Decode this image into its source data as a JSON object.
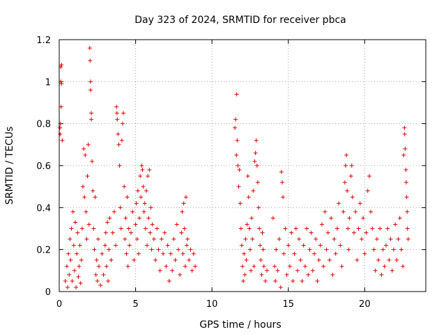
{
  "chart_data": {
    "type": "scatter",
    "title": "Day 323 of 2024, SRMTID for receiver pbca",
    "xlabel": "GPS time / hours",
    "ylabel": "SRMTID / TECUs",
    "xlim": [
      0,
      24
    ],
    "ylim": [
      0,
      1.2
    ],
    "x_ticks": [
      "0",
      "5",
      "10",
      "15",
      "20"
    ],
    "y_ticks": [
      "0",
      "0.2",
      "0.4",
      "0.6",
      "0.8",
      "1",
      "1.2"
    ],
    "grid": true,
    "marker": "plus",
    "color": "#e00000",
    "series": [
      {
        "name": "SRMTID",
        "points": [
          [
            0.05,
            0.78
          ],
          [
            0.06,
            0.75
          ],
          [
            0.08,
            0.8
          ],
          [
            0.1,
            1.07
          ],
          [
            0.1,
            1.0
          ],
          [
            0.12,
            0.88
          ],
          [
            0.15,
            0.99
          ],
          [
            0.15,
            1.08
          ],
          [
            0.2,
            0.72
          ],
          [
            0.4,
            0.05
          ],
          [
            0.5,
            0.12
          ],
          [
            0.55,
            0.02
          ],
          [
            0.6,
            0.18
          ],
          [
            0.65,
            0.08
          ],
          [
            0.7,
            0.25
          ],
          [
            0.75,
            0.15
          ],
          [
            0.8,
            0.3
          ],
          [
            0.85,
            0.05
          ],
          [
            0.9,
            0.38
          ],
          [
            0.95,
            0.22
          ],
          [
            1.0,
            0.1
          ],
          [
            1.05,
            0.33
          ],
          [
            1.1,
            0.02
          ],
          [
            1.15,
            0.18
          ],
          [
            1.2,
            0.28
          ],
          [
            1.25,
            0.07
          ],
          [
            1.3,
            0.12
          ],
          [
            1.35,
            0.22
          ],
          [
            1.4,
            0.04
          ],
          [
            1.45,
            0.15
          ],
          [
            1.5,
            0.3
          ],
          [
            1.55,
            0.5
          ],
          [
            1.6,
            0.68
          ],
          [
            1.65,
            0.45
          ],
          [
            1.7,
            0.65
          ],
          [
            1.75,
            0.38
          ],
          [
            1.8,
            0.25
          ],
          [
            1.85,
            0.55
          ],
          [
            1.9,
            0.7
          ],
          [
            1.95,
            0.32
          ],
          [
            2.0,
            1.16
          ],
          [
            2.02,
            1.1
          ],
          [
            2.05,
            1.0
          ],
          [
            2.05,
            0.96
          ],
          [
            2.1,
            0.85
          ],
          [
            2.1,
            0.82
          ],
          [
            2.15,
            0.62
          ],
          [
            2.2,
            0.48
          ],
          [
            2.25,
            0.3
          ],
          [
            2.3,
            0.2
          ],
          [
            2.35,
            0.45
          ],
          [
            2.4,
            0.08
          ],
          [
            2.45,
            0.15
          ],
          [
            2.5,
            0.05
          ],
          [
            2.55,
            0.25
          ],
          [
            2.6,
            0.12
          ],
          [
            2.7,
            0.03
          ],
          [
            2.8,
            0.18
          ],
          [
            2.9,
            0.08
          ],
          [
            3.0,
            0.22
          ],
          [
            3.05,
            0.28
          ],
          [
            3.1,
            0.12
          ],
          [
            3.15,
            0.33
          ],
          [
            3.2,
            0.05
          ],
          [
            3.25,
            0.2
          ],
          [
            3.3,
            0.35
          ],
          [
            3.4,
            0.15
          ],
          [
            3.5,
            0.28
          ],
          [
            3.6,
            0.38
          ],
          [
            3.7,
            0.22
          ],
          [
            3.75,
            0.88
          ],
          [
            3.78,
            0.85
          ],
          [
            3.8,
            0.82
          ],
          [
            3.85,
            0.75
          ],
          [
            3.9,
            0.7
          ],
          [
            3.95,
            0.6
          ],
          [
            4.0,
            0.4
          ],
          [
            4.05,
            0.3
          ],
          [
            4.1,
            0.72
          ],
          [
            4.15,
            0.8
          ],
          [
            4.2,
            0.85
          ],
          [
            4.25,
            0.5
          ],
          [
            4.3,
            0.25
          ],
          [
            4.35,
            0.35
          ],
          [
            4.4,
            0.18
          ],
          [
            4.45,
            0.45
          ],
          [
            4.5,
            0.12
          ],
          [
            4.55,
            0.3
          ],
          [
            4.6,
            0.22
          ],
          [
            4.7,
            0.28
          ],
          [
            4.8,
            0.38
          ],
          [
            4.9,
            0.15
          ],
          [
            5.0,
            0.32
          ],
          [
            5.05,
            0.42
          ],
          [
            5.1,
            0.25
          ],
          [
            5.15,
            0.48
          ],
          [
            5.2,
            0.18
          ],
          [
            5.25,
            0.35
          ],
          [
            5.3,
            0.55
          ],
          [
            5.35,
            0.45
          ],
          [
            5.4,
            0.6
          ],
          [
            5.45,
            0.58
          ],
          [
            5.5,
            0.5
          ],
          [
            5.55,
            0.38
          ],
          [
            5.6,
            0.42
          ],
          [
            5.65,
            0.3
          ],
          [
            5.7,
            0.48
          ],
          [
            5.75,
            0.22
          ],
          [
            5.8,
            0.55
          ],
          [
            5.85,
            0.35
          ],
          [
            5.9,
            0.58
          ],
          [
            5.95,
            0.28
          ],
          [
            6.0,
            0.4
          ],
          [
            6.05,
            0.2
          ],
          [
            6.1,
            0.32
          ],
          [
            6.2,
            0.25
          ],
          [
            6.3,
            0.15
          ],
          [
            6.4,
            0.3
          ],
          [
            6.5,
            0.2
          ],
          [
            6.6,
            0.1
          ],
          [
            6.7,
            0.25
          ],
          [
            6.8,
            0.18
          ],
          [
            6.9,
            0.28
          ],
          [
            7.0,
            0.12
          ],
          [
            7.1,
            0.22
          ],
          [
            7.2,
            0.05
          ],
          [
            7.3,
            0.18
          ],
          [
            7.4,
            0.1
          ],
          [
            7.5,
            0.25
          ],
          [
            7.6,
            0.15
          ],
          [
            7.7,
            0.32
          ],
          [
            7.8,
            0.2
          ],
          [
            7.9,
            0.08
          ],
          [
            8.0,
            0.28
          ],
          [
            8.05,
            0.38
          ],
          [
            8.1,
            0.18
          ],
          [
            8.15,
            0.42
          ],
          [
            8.2,
            0.3
          ],
          [
            8.25,
            0.12
          ],
          [
            8.3,
            0.45
          ],
          [
            8.35,
            0.22
          ],
          [
            8.4,
            0.25
          ],
          [
            8.5,
            0.15
          ],
          [
            8.6,
            0.2
          ],
          [
            8.7,
            0.1
          ],
          [
            8.8,
            0.18
          ],
          [
            8.9,
            0.12
          ],
          [
            11.5,
            0.78
          ],
          [
            11.55,
            0.82
          ],
          [
            11.6,
            0.65
          ],
          [
            11.62,
            0.94
          ],
          [
            11.65,
            0.72
          ],
          [
            11.7,
            0.6
          ],
          [
            11.75,
            0.5
          ],
          [
            11.8,
            0.58
          ],
          [
            11.85,
            0.42
          ],
          [
            11.9,
            0.3
          ],
          [
            11.95,
            0.22
          ],
          [
            12.0,
            0.12
          ],
          [
            12.05,
            0.05
          ],
          [
            12.1,
            0.18
          ],
          [
            12.15,
            0.08
          ],
          [
            12.2,
            0.25
          ],
          [
            12.25,
            0.15
          ],
          [
            12.3,
            0.32
          ],
          [
            12.35,
            0.55
          ],
          [
            12.4,
            0.45
          ],
          [
            12.45,
            0.3
          ],
          [
            12.5,
            0.2
          ],
          [
            12.55,
            0.1
          ],
          [
            12.6,
            0.35
          ],
          [
            12.65,
            0.25
          ],
          [
            12.7,
            0.48
          ],
          [
            12.75,
            0.12
          ],
          [
            12.8,
            0.62
          ],
          [
            12.85,
            0.66
          ],
          [
            12.9,
            0.72
          ],
          [
            12.95,
            0.6
          ],
          [
            13.0,
            0.52
          ],
          [
            13.05,
            0.4
          ],
          [
            13.1,
            0.3
          ],
          [
            13.15,
            0.22
          ],
          [
            13.2,
            0.15
          ],
          [
            13.25,
            0.08
          ],
          [
            13.3,
            0.28
          ],
          [
            13.35,
            0.2
          ],
          [
            13.4,
            0.12
          ],
          [
            13.5,
            0.05
          ],
          [
            13.6,
            0.1
          ],
          [
            14.0,
            0.35
          ],
          [
            14.1,
            0.12
          ],
          [
            14.15,
            0.05
          ],
          [
            14.2,
            0.2
          ],
          [
            14.3,
            0.1
          ],
          [
            14.4,
            0.25
          ],
          [
            14.5,
            0.02
          ],
          [
            14.55,
            0.57
          ],
          [
            14.6,
            0.52
          ],
          [
            14.65,
            0.45
          ],
          [
            14.7,
            0.18
          ],
          [
            14.8,
            0.3
          ],
          [
            14.9,
            0.08
          ],
          [
            15.0,
            0.22
          ],
          [
            15.1,
            0.12
          ],
          [
            15.2,
            0.28
          ],
          [
            15.3,
            0.05
          ],
          [
            15.4,
            0.18
          ],
          [
            15.5,
            0.3
          ],
          [
            15.6,
            0.1
          ],
          [
            15.7,
            0.25
          ],
          [
            15.8,
            0.15
          ],
          [
            15.9,
            0.05
          ],
          [
            16.0,
            0.22
          ],
          [
            16.1,
            0.12
          ],
          [
            16.2,
            0.3
          ],
          [
            16.3,
            0.08
          ],
          [
            16.4,
            0.2
          ],
          [
            16.5,
            0.28
          ],
          [
            16.6,
            0.1
          ],
          [
            16.7,
            0.18
          ],
          [
            16.8,
            0.25
          ],
          [
            16.9,
            0.05
          ],
          [
            17.0,
            0.15
          ],
          [
            17.1,
            0.22
          ],
          [
            17.2,
            0.32
          ],
          [
            17.3,
            0.12
          ],
          [
            17.4,
            0.38
          ],
          [
            17.5,
            0.2
          ],
          [
            17.6,
            0.28
          ],
          [
            17.7,
            0.15
          ],
          [
            17.8,
            0.35
          ],
          [
            17.9,
            0.08
          ],
          [
            18.0,
            0.25
          ],
          [
            18.1,
            0.18
          ],
          [
            18.2,
            0.3
          ],
          [
            18.3,
            0.42
          ],
          [
            18.4,
            0.22
          ],
          [
            18.5,
            0.12
          ],
          [
            18.6,
            0.38
          ],
          [
            18.7,
            0.52
          ],
          [
            18.75,
            0.6
          ],
          [
            18.8,
            0.65
          ],
          [
            18.85,
            0.48
          ],
          [
            18.9,
            0.3
          ],
          [
            18.95,
            0.2
          ],
          [
            19.0,
            0.35
          ],
          [
            19.1,
            0.55
          ],
          [
            19.15,
            0.6
          ],
          [
            19.2,
            0.45
          ],
          [
            19.3,
            0.28
          ],
          [
            19.4,
            0.38
          ],
          [
            19.5,
            0.15
          ],
          [
            19.6,
            0.3
          ],
          [
            19.7,
            0.42
          ],
          [
            19.8,
            0.25
          ],
          [
            19.9,
            0.35
          ],
          [
            20.0,
            0.18
          ],
          [
            20.1,
            0.28
          ],
          [
            20.2,
            0.48
          ],
          [
            20.3,
            0.55
          ],
          [
            20.4,
            0.38
          ],
          [
            20.5,
            0.3
          ],
          [
            20.6,
            0.2
          ],
          [
            20.7,
            0.1
          ],
          [
            20.8,
            0.25
          ],
          [
            20.9,
            0.15
          ],
          [
            21.0,
            0.3
          ],
          [
            21.1,
            0.08
          ],
          [
            21.2,
            0.2
          ],
          [
            21.3,
            0.12
          ],
          [
            21.4,
            0.22
          ],
          [
            21.5,
            0.3
          ],
          [
            21.6,
            0.15
          ],
          [
            21.7,
            0.25
          ],
          [
            21.8,
            0.1
          ],
          [
            21.9,
            0.2
          ],
          [
            22.0,
            0.32
          ],
          [
            22.1,
            0.15
          ],
          [
            22.2,
            0.25
          ],
          [
            22.3,
            0.35
          ],
          [
            22.4,
            0.2
          ],
          [
            22.5,
            0.12
          ],
          [
            22.55,
            0.65
          ],
          [
            22.6,
            0.78
          ],
          [
            22.62,
            0.75
          ],
          [
            22.65,
            0.68
          ],
          [
            22.7,
            0.58
          ],
          [
            22.72,
            0.52
          ],
          [
            22.75,
            0.45
          ],
          [
            22.78,
            0.38
          ],
          [
            22.8,
            0.3
          ],
          [
            22.85,
            0.25
          ]
        ]
      }
    ]
  }
}
